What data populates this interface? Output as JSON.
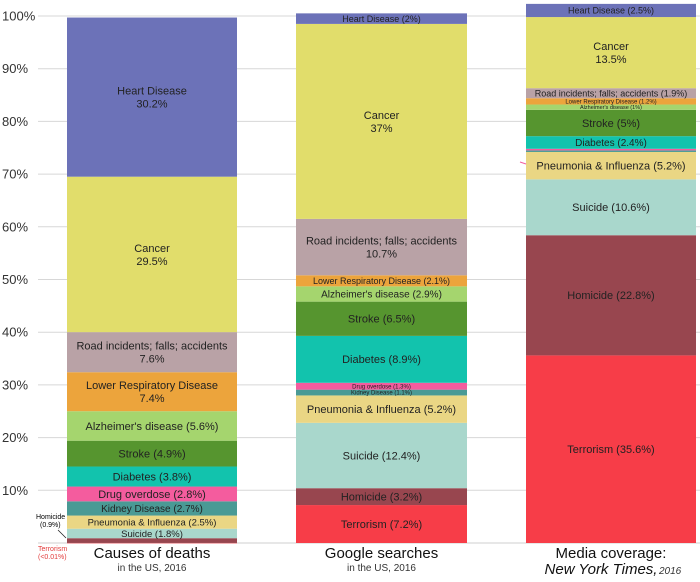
{
  "chart_data": {
    "type": "bar",
    "stacked": true,
    "ylim": [
      0,
      100
    ],
    "y_ticks": [
      "10%",
      "20%",
      "30%",
      "40%",
      "50%",
      "60%",
      "70%",
      "80%",
      "90%",
      "100%"
    ],
    "grid": true,
    "categories": [
      {
        "title": "Causes of deaths",
        "subtitle": "in the US, 2016",
        "italic_title": false
      },
      {
        "title": "Google searches",
        "subtitle": "in the US, 2016",
        "italic_title": false
      },
      {
        "title": "Media coverage:",
        "title_line2": "New York Times,",
        "title_line2_suffix": "2016",
        "subtitle": "",
        "italic_title": true
      }
    ],
    "columns": [
      {
        "segments": [
          {
            "name": "Terrorism",
            "value": 0.01,
            "color": "#f73d48",
            "label": "",
            "label2": "",
            "font": 10
          },
          {
            "name": "Homicide",
            "value": 0.9,
            "color": "#98464f",
            "label": "",
            "label2": "",
            "font": 10
          },
          {
            "name": "Suicide",
            "value": 1.8,
            "color": "#a9d7cc",
            "label": "Suicide (1.8%)",
            "label2": "",
            "font": 9.5
          },
          {
            "name": "Pneumonia & Influenza",
            "value": 2.5,
            "color": "#ead684",
            "label": "Pneumonia & Influenza (2.5%)",
            "label2": "",
            "font": 9.5
          },
          {
            "name": "Kidney Disease",
            "value": 2.7,
            "color": "#4a9a95",
            "label": "Kidney Disease (2.7%)",
            "label2": "",
            "font": 10
          },
          {
            "name": "Drug overdose",
            "value": 2.8,
            "color": "#f45c9e",
            "label": "Drug overdose (2.8%)",
            "label2": "",
            "font": 11
          },
          {
            "name": "Diabetes",
            "value": 3.8,
            "color": "#12c3ad",
            "label": "Diabetes (3.8%)",
            "label2": "",
            "font": 11
          },
          {
            "name": "Stroke",
            "value": 4.9,
            "color": "#56952f",
            "label": "Stroke (4.9%)",
            "label2": "",
            "font": 11
          },
          {
            "name": "Alzheimer's disease",
            "value": 5.6,
            "color": "#a5d56e",
            "label": "Alzheimer's disease (5.6%)",
            "label2": "",
            "font": 11
          },
          {
            "name": "Lower Respiratory Disease",
            "value": 7.4,
            "color": "#eca43c",
            "label": "Lower Respiratory Disease",
            "label2": "7.4%",
            "font": 11
          },
          {
            "name": "Road incidents; falls; accidents",
            "value": 7.6,
            "color": "#b9a2a6",
            "label": "Road incidents; falls; accidents",
            "label2": "7.6%",
            "font": 11
          },
          {
            "name": "Cancer",
            "value": 29.5,
            "color": "#e1dd6b",
            "label": "Cancer",
            "label2": "29.5%",
            "font": 11
          },
          {
            "name": "Heart Disease",
            "value": 30.2,
            "color": "#6c72b8",
            "label": "Heart Disease",
            "label2": "30.2%",
            "font": 11,
            "light": true
          }
        ]
      },
      {
        "segments": [
          {
            "name": "Terrorism",
            "value": 7.2,
            "color": "#f73d48",
            "label": "Terrorism (7.2%)",
            "label2": "",
            "font": 11,
            "light": true
          },
          {
            "name": "Homicide",
            "value": 3.2,
            "color": "#98464f",
            "label": "Homicide (3.2%)",
            "label2": "",
            "font": 11,
            "light": true
          },
          {
            "name": "Suicide",
            "value": 12.4,
            "color": "#a9d7cc",
            "label": "Suicide (12.4%)",
            "label2": "",
            "font": 11
          },
          {
            "name": "Pneumonia & Influenza",
            "value": 5.2,
            "color": "#ead684",
            "label": "Pneumonia & Influenza (5.2%)",
            "label2": "",
            "font": 11
          },
          {
            "name": "Kidney Disease",
            "value": 1.1,
            "color": "#4a9a95",
            "label": "Kidney Disease (1.1%)",
            "label2": "",
            "font": 6
          },
          {
            "name": "Drug overdose",
            "value": 1.3,
            "color": "#f45c9e",
            "label": "Drug overdose (1.3%)",
            "label2": "",
            "font": 6
          },
          {
            "name": "Diabetes",
            "value": 8.9,
            "color": "#12c3ad",
            "label": "Diabetes (8.9%)",
            "label2": "",
            "font": 11
          },
          {
            "name": "Stroke",
            "value": 6.5,
            "color": "#56952f",
            "label": "Stroke (6.5%)",
            "label2": "",
            "font": 11
          },
          {
            "name": "Alzheimer's disease",
            "value": 2.9,
            "color": "#a5d56e",
            "label": "Alzheimer's disease (2.9%)",
            "label2": "",
            "font": 10
          },
          {
            "name": "Lower Respiratory Disease",
            "value": 2.1,
            "color": "#eca43c",
            "label": "Lower Respiratory Disease (2.1%)",
            "label2": "",
            "font": 9
          },
          {
            "name": "Road incidents; falls; accidents",
            "value": 10.7,
            "color": "#b9a2a6",
            "label": "Road incidents; falls; accidents",
            "label2": "10.7%",
            "font": 11
          },
          {
            "name": "Cancer",
            "value": 37,
            "color": "#e1dd6b",
            "label": "Cancer",
            "label2": "37%",
            "font": 11
          },
          {
            "name": "Heart Disease",
            "value": 2,
            "color": "#6c72b8",
            "label": "Heart Disease (2%)",
            "label2": "",
            "font": 9,
            "light": true
          }
        ]
      },
      {
        "segments": [
          {
            "name": "Terrorism",
            "value": 35.6,
            "color": "#f73d48",
            "label": "Terrorism (35.6%)",
            "label2": "",
            "font": 11,
            "light": true
          },
          {
            "name": "Homicide",
            "value": 22.8,
            "color": "#98464f",
            "label": "Homicide (22.8%)",
            "label2": "",
            "font": 11,
            "light": true
          },
          {
            "name": "Suicide",
            "value": 10.6,
            "color": "#a9d7cc",
            "label": "Suicide (10.6%)",
            "label2": "",
            "font": 11
          },
          {
            "name": "Pneumonia & Influenza",
            "value": 5.2,
            "color": "#ead684",
            "label": "Pneumonia & Influenza (5.2%)",
            "label2": "",
            "font": 11
          },
          {
            "name": "Kidney Disease",
            "value": 0.3,
            "color": "#4a9a95",
            "label": "",
            "label2": "",
            "font": 6
          },
          {
            "name": "Drug overdose",
            "value": 0.3,
            "color": "#f45c9e",
            "label": "",
            "label2": "",
            "font": 6
          },
          {
            "name": "Diabetes",
            "value": 2.4,
            "color": "#12c3ad",
            "label": "Diabetes (2.4%)",
            "label2": "",
            "font": 10
          },
          {
            "name": "Stroke",
            "value": 5,
            "color": "#56952f",
            "label": "Stroke (5%)",
            "label2": "",
            "font": 11
          },
          {
            "name": "Alzheimer's disease",
            "value": 1,
            "color": "#a5d56e",
            "label": "Alzheimer's disease (1%)",
            "label2": "",
            "font": 5.5
          },
          {
            "name": "Lower Respiratory Disease",
            "value": 1.2,
            "color": "#eca43c",
            "label": "Lower Respiratory Disease (1.2%)",
            "label2": "",
            "font": 6
          },
          {
            "name": "Road incidents; falls; accidents",
            "value": 1.9,
            "color": "#b9a2a6",
            "label": "Road incidents; falls; accidents (1.9%)",
            "label2": "",
            "font": 9
          },
          {
            "name": "Cancer",
            "value": 13.5,
            "color": "#e1dd6b",
            "label": "Cancer",
            "label2": "13.5%",
            "font": 11
          },
          {
            "name": "Heart Disease",
            "value": 2.5,
            "color": "#6c72b8",
            "label": "Heart Disease (2.5%)",
            "label2": "",
            "font": 9,
            "light": true
          }
        ]
      }
    ],
    "annotations": {
      "homicide": {
        "line1": "Homicide",
        "line2": "(0.9%)",
        "color": "#222222"
      },
      "terrorism": {
        "line1": "Terrorism",
        "line2": "(<0.01%)",
        "color": "#e23a3a"
      }
    }
  }
}
